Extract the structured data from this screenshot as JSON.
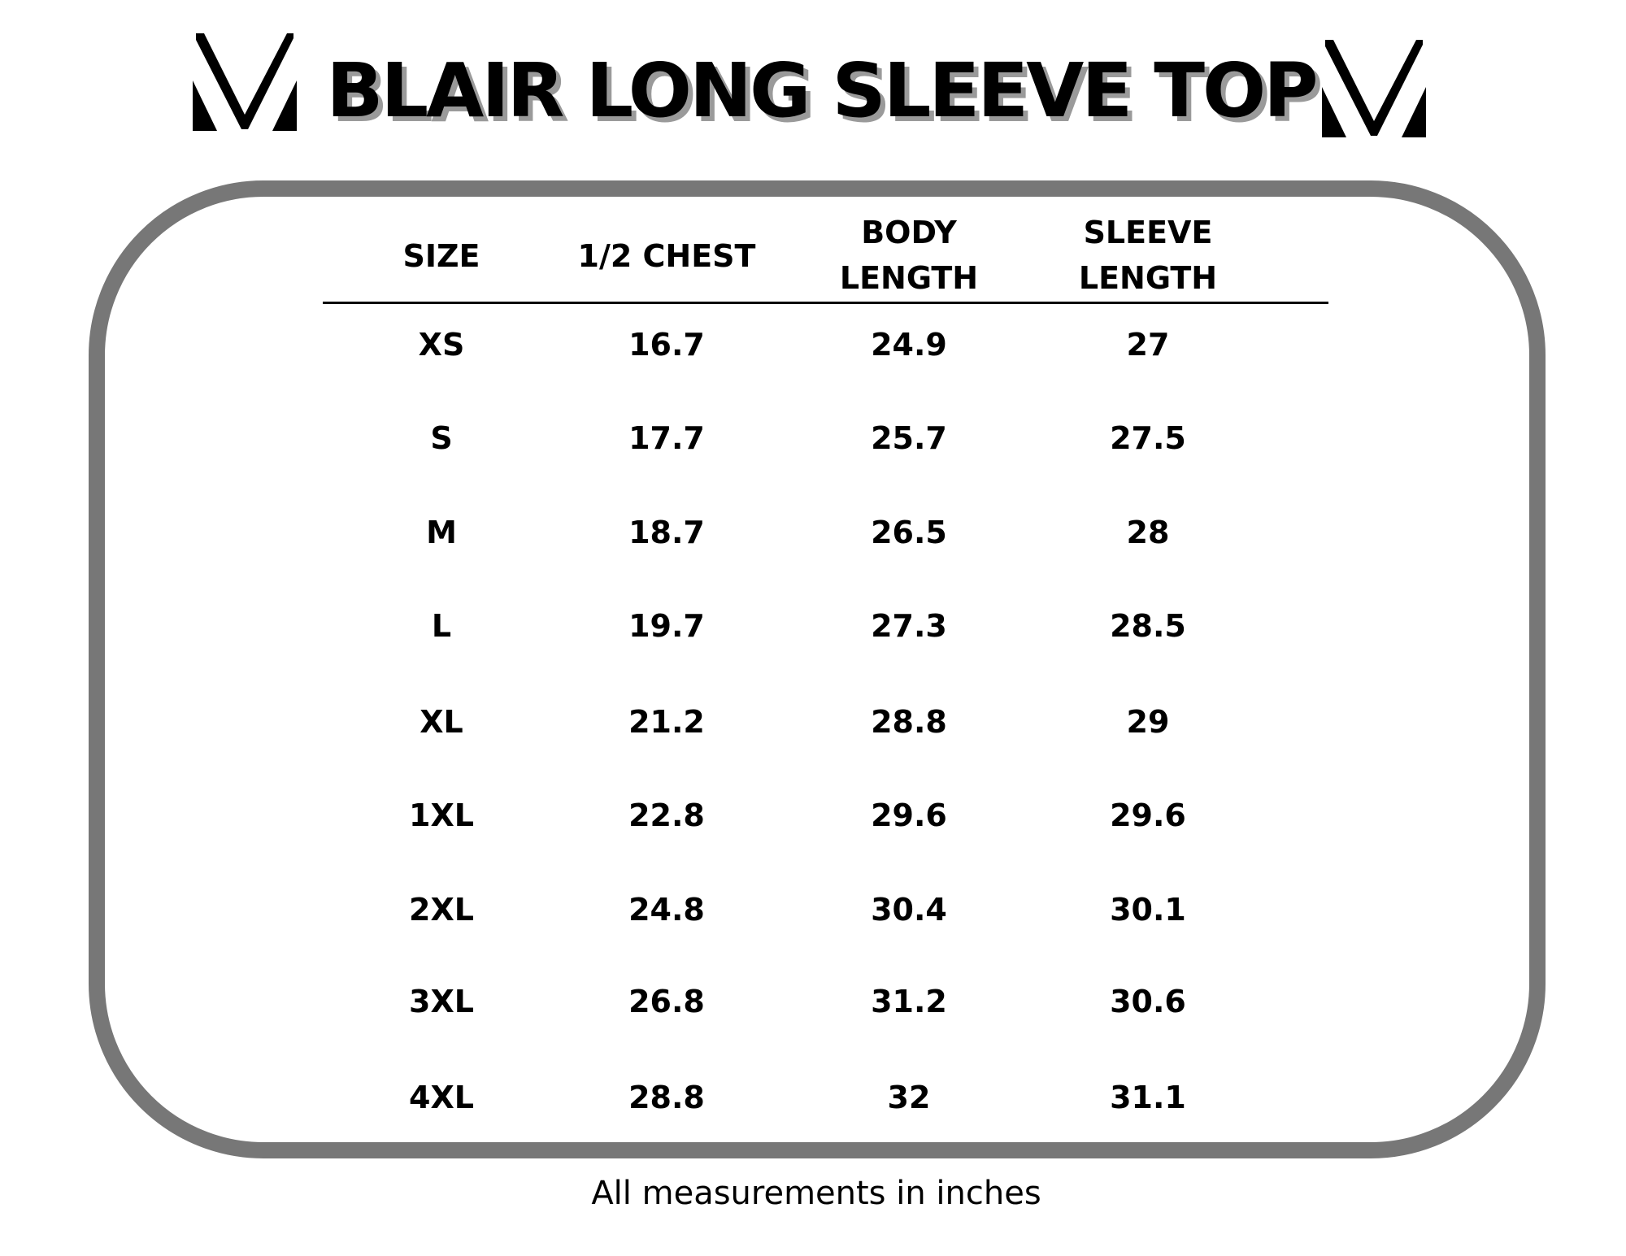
{
  "title": "BLAIR LONG SLEEVE TOP",
  "logo_icon": "brand-v-logo",
  "colors": {
    "frame": "#777777",
    "title_shadow": "#9a9a9a"
  },
  "table": {
    "headers": [
      [
        "SIZE"
      ],
      [
        "1/2 CHEST"
      ],
      [
        "BODY",
        "LENGTH"
      ],
      [
        "SLEEVE",
        "LENGTH"
      ]
    ],
    "rows": [
      [
        "XS",
        "16.7",
        "24.9",
        "27"
      ],
      [
        "S",
        "17.7",
        "25.7",
        "27.5"
      ],
      [
        "M",
        "18.7",
        "26.5",
        "28"
      ],
      [
        "L",
        "19.7",
        "27.3",
        "28.5"
      ],
      [
        "XL",
        "21.2",
        "28.8",
        "29"
      ],
      [
        "1XL",
        "22.8",
        "29.6",
        "29.6"
      ],
      [
        "2XL",
        "24.8",
        "30.4",
        "30.1"
      ],
      [
        "3XL",
        "26.8",
        "31.2",
        "30.6"
      ],
      [
        "4XL",
        "28.8",
        "32",
        "31.1"
      ]
    ]
  },
  "footer": "All measurements in inches"
}
